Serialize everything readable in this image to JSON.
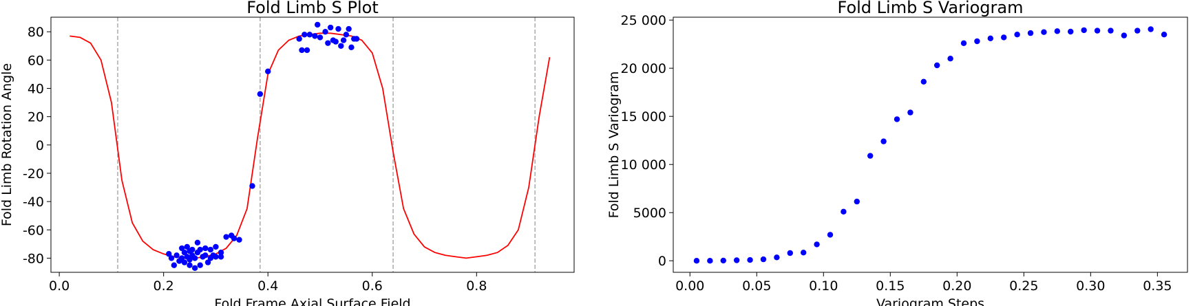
{
  "chart_data": [
    {
      "type": "scatter",
      "title": "Fold Limb S Plot",
      "xlabel": "Fold Frame Axial Surface Field",
      "ylabel": "Fold Limb Rotation Angle",
      "xlim": [
        -0.016,
        0.987
      ],
      "ylim": [
        -90,
        90.3
      ],
      "xticks": [
        {
          "value": 0,
          "label": "0.0"
        },
        0.2,
        0.4,
        0.6,
        0.8
      ],
      "yticks": [
        -80,
        -60,
        -40,
        -20,
        0,
        20,
        40,
        60,
        80
      ],
      "vlines": {
        "color": "#aaaaaa",
        "x": [
          0.112,
          0.385,
          0.64,
          0.912
        ]
      },
      "line": {
        "color": "#ff0000",
        "x": [
          0.02,
          0.04,
          0.06,
          0.08,
          0.1,
          0.12,
          0.14,
          0.16,
          0.18,
          0.2,
          0.22,
          0.24,
          0.26,
          0.28,
          0.3,
          0.32,
          0.34,
          0.36,
          0.38,
          0.4,
          0.42,
          0.44,
          0.46,
          0.48,
          0.5,
          0.52,
          0.54,
          0.56,
          0.58,
          0.6,
          0.62,
          0.64,
          0.66,
          0.68,
          0.7,
          0.72,
          0.74,
          0.76,
          0.78,
          0.8,
          0.82,
          0.84,
          0.86,
          0.88,
          0.9,
          0.92,
          0.94
        ],
        "y": [
          77,
          76,
          72,
          60,
          30,
          -25,
          -55,
          -68,
          -74,
          -77,
          -79,
          -80,
          -80,
          -79,
          -77,
          -73,
          -64,
          -45,
          5,
          50,
          67,
          74,
          77,
          78,
          79,
          79,
          78,
          77,
          74,
          65,
          40,
          -5,
          -45,
          -63,
          -72,
          -76,
          -78,
          -79,
          -80,
          -79,
          -78,
          -76,
          -71,
          -60,
          -30,
          20,
          62
        ]
      },
      "points": {
        "color": "#0000ff",
        "x": [
          0.21,
          0.215,
          0.22,
          0.225,
          0.23,
          0.235,
          0.235,
          0.24,
          0.24,
          0.245,
          0.245,
          0.25,
          0.25,
          0.25,
          0.255,
          0.255,
          0.26,
          0.26,
          0.265,
          0.265,
          0.27,
          0.27,
          0.275,
          0.28,
          0.28,
          0.285,
          0.29,
          0.29,
          0.295,
          0.3,
          0.3,
          0.31,
          0.31,
          0.32,
          0.33,
          0.335,
          0.345,
          0.37,
          0.385,
          0.4,
          0.46,
          0.465,
          0.47,
          0.475,
          0.48,
          0.49,
          0.495,
          0.5,
          0.51,
          0.515,
          0.52,
          0.525,
          0.53,
          0.535,
          0.54,
          0.545,
          0.55,
          0.555,
          0.56,
          0.565,
          0.57
        ],
        "y": [
          -77,
          -80,
          -85,
          -78,
          -82,
          -73,
          -80,
          -76,
          -83,
          -72,
          -79,
          -75,
          -81,
          -85,
          -74,
          -78,
          -87,
          -80,
          -69,
          -76,
          -74,
          -85,
          -79,
          -73,
          -78,
          -83,
          -74,
          -80,
          -78,
          -72,
          -79,
          -76,
          -79,
          -65,
          -64,
          -66,
          -67,
          -29,
          36,
          52,
          75,
          67,
          78,
          67,
          78,
          77,
          85,
          76,
          80,
          72,
          83,
          74,
          73,
          82,
          70,
          74,
          78,
          82,
          69,
          75,
          75
        ]
      }
    },
    {
      "type": "scatter",
      "title": "Fold Limb S Variogram",
      "xlabel": "Variogram Steps",
      "ylabel": "Fold Limb S Variogram",
      "xlim": [
        -0.0125,
        0.3725
      ],
      "ylim": [
        -1200,
        25300
      ],
      "xticks": [
        {
          "value": 0,
          "label": "0.00"
        },
        0.05,
        {
          "value": 0.1,
          "label": "0.10"
        },
        0.15,
        {
          "value": 0.2,
          "label": "0.20"
        },
        0.25,
        {
          "value": 0.3,
          "label": "0.30"
        },
        0.35
      ],
      "yticks": [
        0,
        5000,
        {
          "value": 10000,
          "label": "10 000"
        },
        {
          "value": 15000,
          "label": "15 000"
        },
        {
          "value": 20000,
          "label": "20 000"
        },
        {
          "value": 25000,
          "label": "25 000"
        }
      ],
      "points": {
        "color": "#0000ff",
        "x": [
          0.005,
          0.015,
          0.025,
          0.035,
          0.045,
          0.055,
          0.065,
          0.075,
          0.085,
          0.095,
          0.105,
          0.115,
          0.125,
          0.135,
          0.145,
          0.155,
          0.165,
          0.175,
          0.185,
          0.195,
          0.205,
          0.215,
          0.225,
          0.235,
          0.245,
          0.255,
          0.265,
          0.275,
          0.285,
          0.295,
          0.305,
          0.315,
          0.325,
          0.335,
          0.345,
          0.355
        ],
        "y": [
          0,
          0,
          20,
          50,
          80,
          150,
          350,
          800,
          850,
          1700,
          2700,
          5100,
          6150,
          10900,
          12400,
          14700,
          15400,
          18600,
          20300,
          21000,
          22600,
          22800,
          23100,
          23200,
          23500,
          23650,
          23750,
          23850,
          23800,
          23950,
          23900,
          23900,
          23400,
          23900,
          24050,
          23500
        ]
      }
    }
  ]
}
